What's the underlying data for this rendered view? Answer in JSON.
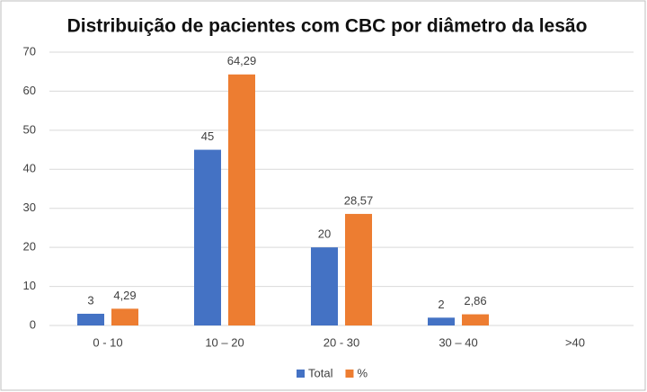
{
  "chart_data": {
    "type": "bar",
    "title": "Distribuição de pacientes com CBC por diâmetro da lesão",
    "categories": [
      "0 - 10",
      "10 – 20",
      "20 - 30",
      "30 – 40",
      ">40"
    ],
    "series": [
      {
        "name": "Total",
        "color": "#4472c4",
        "values": [
          3,
          45,
          20,
          2,
          null
        ]
      },
      {
        "name": "%",
        "color": "#ed7d31",
        "values": [
          4.29,
          64.29,
          28.57,
          2.86,
          null
        ],
        "value_labels": [
          "4,29",
          "64,29",
          "28,57",
          "2,86",
          null
        ]
      }
    ],
    "ylim": [
      0,
      70
    ],
    "yticks": [
      0,
      10,
      20,
      30,
      40,
      50,
      60,
      70
    ],
    "grid": true,
    "legend": "bottom"
  }
}
